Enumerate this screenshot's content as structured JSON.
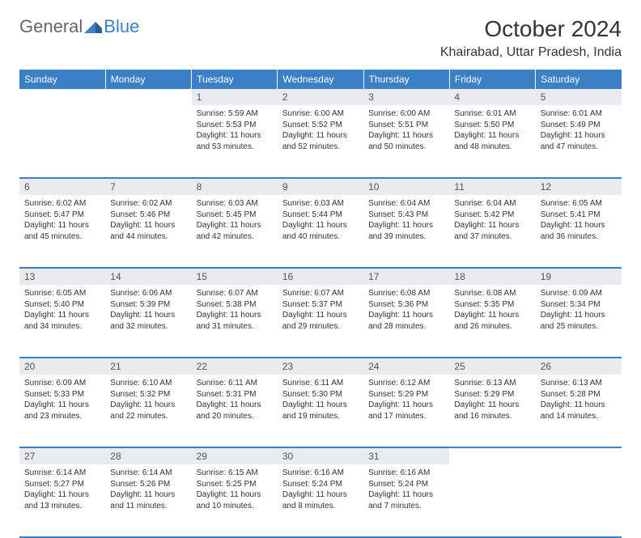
{
  "logo": {
    "text1": "General",
    "text2": "Blue"
  },
  "title": "October 2024",
  "location": "Khairabad, Uttar Pradesh, India",
  "colors": {
    "header_bg": "#3b7fc4",
    "header_text": "#ffffff",
    "daynum_bg": "#e8ecef",
    "border": "#3b7fc4",
    "page_bg": "#ffffff",
    "text": "#333333",
    "logo_general": "#666666",
    "logo_blue": "#3b7fc4"
  },
  "typography": {
    "title_fontsize": 28,
    "location_fontsize": 16,
    "header_fontsize": 12,
    "daynum_fontsize": 12,
    "cell_fontsize": 10,
    "logo_fontsize": 22
  },
  "weekdays": [
    "Sunday",
    "Monday",
    "Tuesday",
    "Wednesday",
    "Thursday",
    "Friday",
    "Saturday"
  ],
  "weeks": [
    {
      "nums": [
        "",
        "",
        "1",
        "2",
        "3",
        "4",
        "5"
      ],
      "cells": [
        null,
        null,
        {
          "sunrise": "Sunrise: 5:59 AM",
          "sunset": "Sunset: 5:53 PM",
          "day1": "Daylight: 11 hours",
          "day2": "and 53 minutes."
        },
        {
          "sunrise": "Sunrise: 6:00 AM",
          "sunset": "Sunset: 5:52 PM",
          "day1": "Daylight: 11 hours",
          "day2": "and 52 minutes."
        },
        {
          "sunrise": "Sunrise: 6:00 AM",
          "sunset": "Sunset: 5:51 PM",
          "day1": "Daylight: 11 hours",
          "day2": "and 50 minutes."
        },
        {
          "sunrise": "Sunrise: 6:01 AM",
          "sunset": "Sunset: 5:50 PM",
          "day1": "Daylight: 11 hours",
          "day2": "and 48 minutes."
        },
        {
          "sunrise": "Sunrise: 6:01 AM",
          "sunset": "Sunset: 5:49 PM",
          "day1": "Daylight: 11 hours",
          "day2": "and 47 minutes."
        }
      ]
    },
    {
      "nums": [
        "6",
        "7",
        "8",
        "9",
        "10",
        "11",
        "12"
      ],
      "cells": [
        {
          "sunrise": "Sunrise: 6:02 AM",
          "sunset": "Sunset: 5:47 PM",
          "day1": "Daylight: 11 hours",
          "day2": "and 45 minutes."
        },
        {
          "sunrise": "Sunrise: 6:02 AM",
          "sunset": "Sunset: 5:46 PM",
          "day1": "Daylight: 11 hours",
          "day2": "and 44 minutes."
        },
        {
          "sunrise": "Sunrise: 6:03 AM",
          "sunset": "Sunset: 5:45 PM",
          "day1": "Daylight: 11 hours",
          "day2": "and 42 minutes."
        },
        {
          "sunrise": "Sunrise: 6:03 AM",
          "sunset": "Sunset: 5:44 PM",
          "day1": "Daylight: 11 hours",
          "day2": "and 40 minutes."
        },
        {
          "sunrise": "Sunrise: 6:04 AM",
          "sunset": "Sunset: 5:43 PM",
          "day1": "Daylight: 11 hours",
          "day2": "and 39 minutes."
        },
        {
          "sunrise": "Sunrise: 6:04 AM",
          "sunset": "Sunset: 5:42 PM",
          "day1": "Daylight: 11 hours",
          "day2": "and 37 minutes."
        },
        {
          "sunrise": "Sunrise: 6:05 AM",
          "sunset": "Sunset: 5:41 PM",
          "day1": "Daylight: 11 hours",
          "day2": "and 36 minutes."
        }
      ]
    },
    {
      "nums": [
        "13",
        "14",
        "15",
        "16",
        "17",
        "18",
        "19"
      ],
      "cells": [
        {
          "sunrise": "Sunrise: 6:05 AM",
          "sunset": "Sunset: 5:40 PM",
          "day1": "Daylight: 11 hours",
          "day2": "and 34 minutes."
        },
        {
          "sunrise": "Sunrise: 6:06 AM",
          "sunset": "Sunset: 5:39 PM",
          "day1": "Daylight: 11 hours",
          "day2": "and 32 minutes."
        },
        {
          "sunrise": "Sunrise: 6:07 AM",
          "sunset": "Sunset: 5:38 PM",
          "day1": "Daylight: 11 hours",
          "day2": "and 31 minutes."
        },
        {
          "sunrise": "Sunrise: 6:07 AM",
          "sunset": "Sunset: 5:37 PM",
          "day1": "Daylight: 11 hours",
          "day2": "and 29 minutes."
        },
        {
          "sunrise": "Sunrise: 6:08 AM",
          "sunset": "Sunset: 5:36 PM",
          "day1": "Daylight: 11 hours",
          "day2": "and 28 minutes."
        },
        {
          "sunrise": "Sunrise: 6:08 AM",
          "sunset": "Sunset: 5:35 PM",
          "day1": "Daylight: 11 hours",
          "day2": "and 26 minutes."
        },
        {
          "sunrise": "Sunrise: 6:09 AM",
          "sunset": "Sunset: 5:34 PM",
          "day1": "Daylight: 11 hours",
          "day2": "and 25 minutes."
        }
      ]
    },
    {
      "nums": [
        "20",
        "21",
        "22",
        "23",
        "24",
        "25",
        "26"
      ],
      "cells": [
        {
          "sunrise": "Sunrise: 6:09 AM",
          "sunset": "Sunset: 5:33 PM",
          "day1": "Daylight: 11 hours",
          "day2": "and 23 minutes."
        },
        {
          "sunrise": "Sunrise: 6:10 AM",
          "sunset": "Sunset: 5:32 PM",
          "day1": "Daylight: 11 hours",
          "day2": "and 22 minutes."
        },
        {
          "sunrise": "Sunrise: 6:11 AM",
          "sunset": "Sunset: 5:31 PM",
          "day1": "Daylight: 11 hours",
          "day2": "and 20 minutes."
        },
        {
          "sunrise": "Sunrise: 6:11 AM",
          "sunset": "Sunset: 5:30 PM",
          "day1": "Daylight: 11 hours",
          "day2": "and 19 minutes."
        },
        {
          "sunrise": "Sunrise: 6:12 AM",
          "sunset": "Sunset: 5:29 PM",
          "day1": "Daylight: 11 hours",
          "day2": "and 17 minutes."
        },
        {
          "sunrise": "Sunrise: 6:13 AM",
          "sunset": "Sunset: 5:29 PM",
          "day1": "Daylight: 11 hours",
          "day2": "and 16 minutes."
        },
        {
          "sunrise": "Sunrise: 6:13 AM",
          "sunset": "Sunset: 5:28 PM",
          "day1": "Daylight: 11 hours",
          "day2": "and 14 minutes."
        }
      ]
    },
    {
      "nums": [
        "27",
        "28",
        "29",
        "30",
        "31",
        "",
        ""
      ],
      "cells": [
        {
          "sunrise": "Sunrise: 6:14 AM",
          "sunset": "Sunset: 5:27 PM",
          "day1": "Daylight: 11 hours",
          "day2": "and 13 minutes."
        },
        {
          "sunrise": "Sunrise: 6:14 AM",
          "sunset": "Sunset: 5:26 PM",
          "day1": "Daylight: 11 hours",
          "day2": "and 11 minutes."
        },
        {
          "sunrise": "Sunrise: 6:15 AM",
          "sunset": "Sunset: 5:25 PM",
          "day1": "Daylight: 11 hours",
          "day2": "and 10 minutes."
        },
        {
          "sunrise": "Sunrise: 6:16 AM",
          "sunset": "Sunset: 5:24 PM",
          "day1": "Daylight: 11 hours",
          "day2": "and 8 minutes."
        },
        {
          "sunrise": "Sunrise: 6:16 AM",
          "sunset": "Sunset: 5:24 PM",
          "day1": "Daylight: 11 hours",
          "day2": "and 7 minutes."
        },
        null,
        null
      ]
    }
  ]
}
